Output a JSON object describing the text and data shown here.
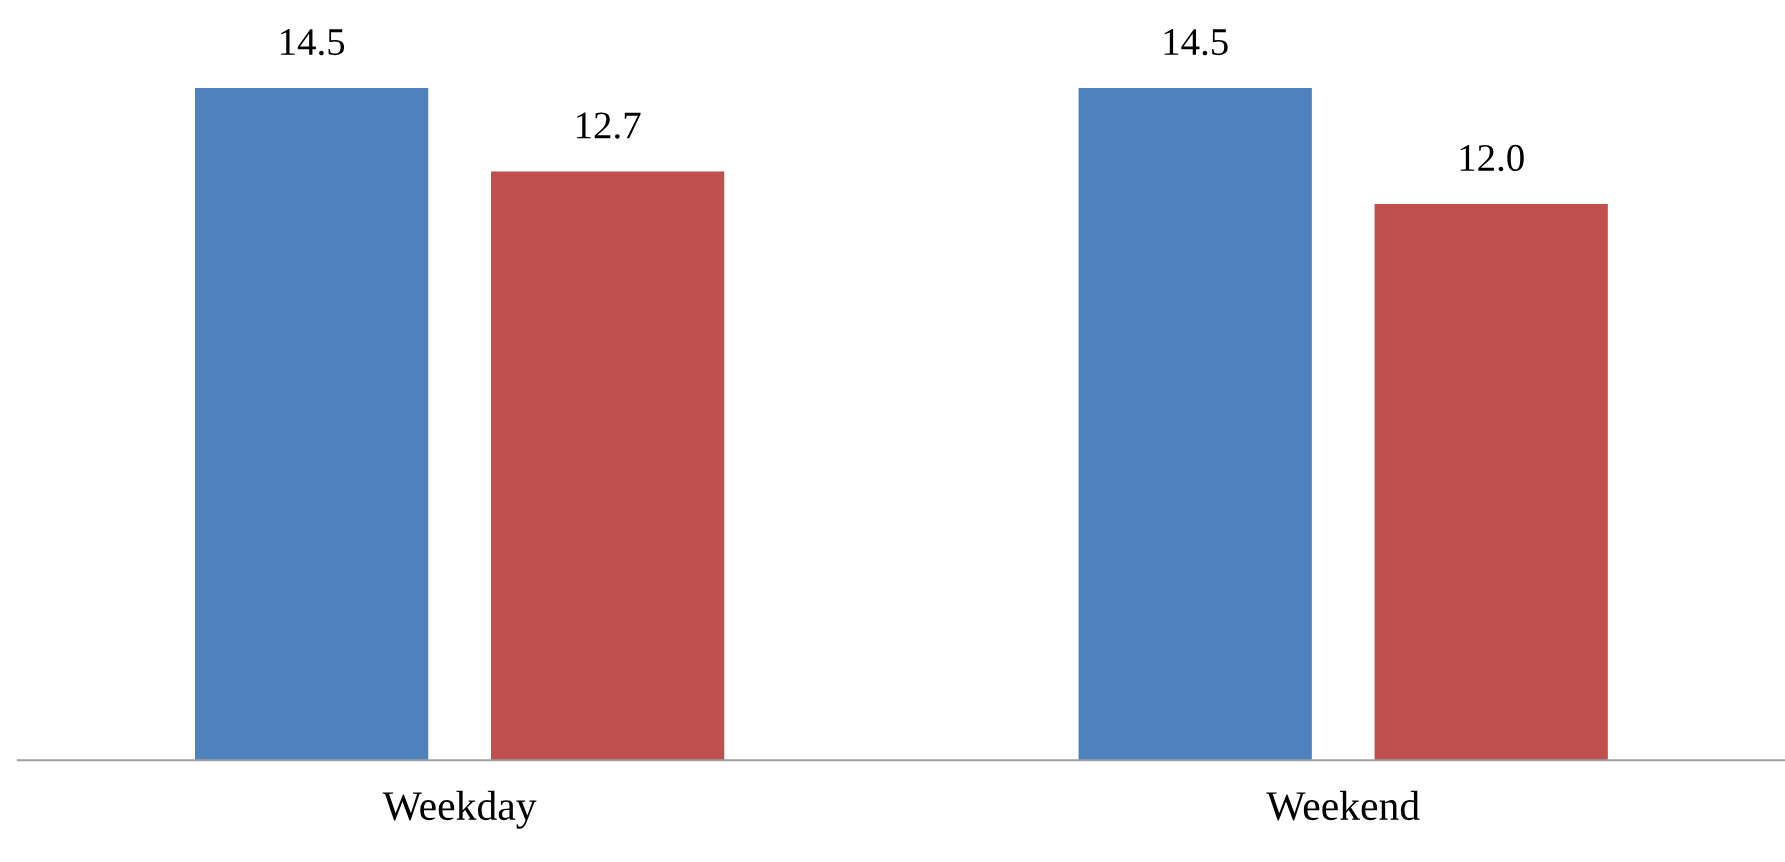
{
  "chart_data": {
    "type": "bar",
    "categories": [
      "Weekday",
      "Weekend"
    ],
    "series": [
      {
        "color": "#4f81bd",
        "values": [
          14.5,
          14.5
        ],
        "value_labels": [
          "14.5",
          "14.5"
        ]
      },
      {
        "color": "#c0504d",
        "values": [
          12.7,
          12.0
        ],
        "value_labels": [
          "12.7",
          "12.0"
        ]
      }
    ],
    "tick_labels": "x",
    "grid": false,
    "legend": false
  }
}
